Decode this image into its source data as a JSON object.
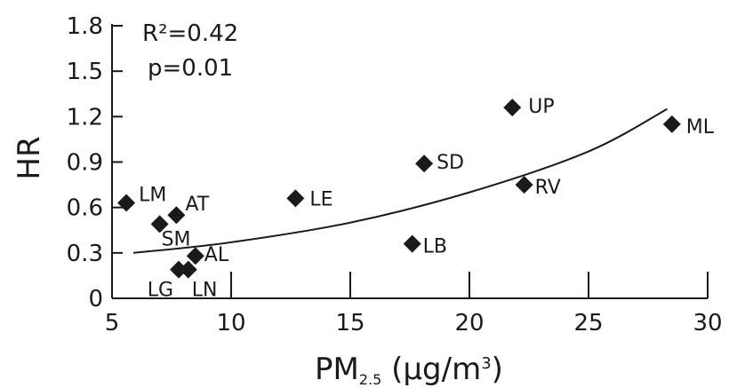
{
  "chart_data": {
    "type": "scatter",
    "xlabel": "PM2.5 (µg/m3)",
    "xlabel_parts": {
      "main": "PM",
      "sub": "2.5",
      "unit": " (µg/m",
      "sup": "3",
      "close": ")"
    },
    "ylabel": "HR",
    "xlim": [
      5,
      30
    ],
    "ylim": [
      0,
      1.8
    ],
    "xticks": [
      5,
      10,
      15,
      20,
      25,
      30
    ],
    "xtick_labels": [
      "5",
      "10",
      "15",
      "20",
      "25",
      "30"
    ],
    "yticks": [
      0,
      0.3,
      0.6,
      0.9,
      1.2,
      1.5,
      1.8
    ],
    "ytick_labels": [
      "0",
      "0.3",
      "0.6",
      "0.9",
      "1.2",
      "1.5",
      "1.8"
    ],
    "grid": false,
    "marker": "diamond",
    "marker_color": "#1a1a1a",
    "annotations": {
      "r2": "R²=0.42",
      "p": "p=0.01"
    },
    "points": [
      {
        "label": "LM",
        "x": 5.6,
        "y": 0.63
      },
      {
        "label": "SM",
        "x": 7.0,
        "y": 0.49
      },
      {
        "label": "AT",
        "x": 7.7,
        "y": 0.55
      },
      {
        "label": "LG",
        "x": 7.8,
        "y": 0.19
      },
      {
        "label": "LN",
        "x": 8.2,
        "y": 0.19
      },
      {
        "label": "AL",
        "x": 8.5,
        "y": 0.28
      },
      {
        "label": "LE",
        "x": 12.7,
        "y": 0.66
      },
      {
        "label": "LB",
        "x": 17.6,
        "y": 0.36
      },
      {
        "label": "SD",
        "x": 18.1,
        "y": 0.89
      },
      {
        "label": "UP",
        "x": 21.8,
        "y": 1.26
      },
      {
        "label": "RV",
        "x": 22.3,
        "y": 0.75
      },
      {
        "label": "ML",
        "x": 28.5,
        "y": 1.15
      }
    ],
    "fit_curve": {
      "type": "exponential",
      "points": [
        [
          5.9,
          0.3
        ],
        [
          10,
          0.37
        ],
        [
          15,
          0.5
        ],
        [
          20,
          0.7
        ],
        [
          25,
          0.97
        ],
        [
          28.3,
          1.25
        ]
      ]
    }
  }
}
